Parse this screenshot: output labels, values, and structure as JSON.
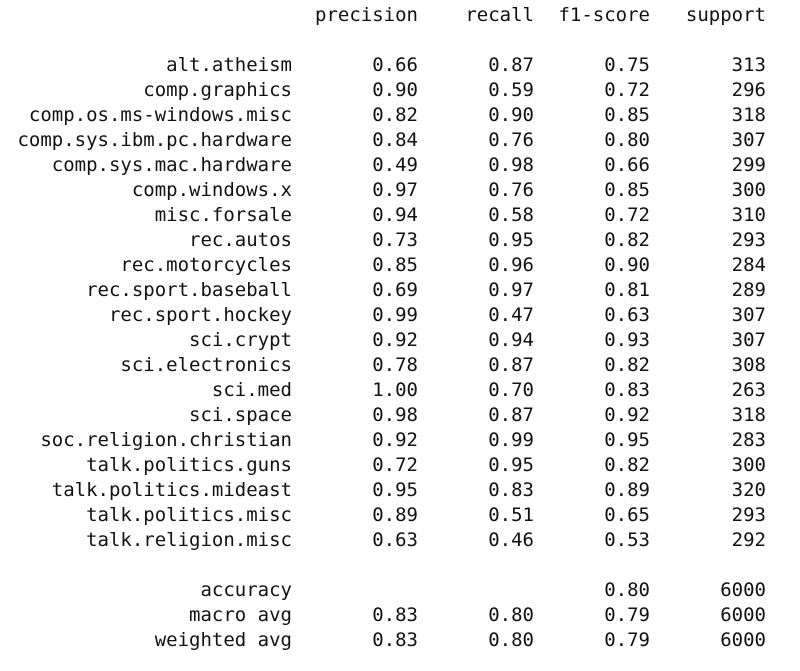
{
  "report": {
    "headers": [
      "precision",
      "recall",
      "f1-score",
      "support"
    ],
    "classes": [
      {
        "label": "alt.atheism",
        "precision": "0.66",
        "recall": "0.87",
        "f1": "0.75",
        "support": "313"
      },
      {
        "label": "comp.graphics",
        "precision": "0.90",
        "recall": "0.59",
        "f1": "0.72",
        "support": "296"
      },
      {
        "label": "comp.os.ms-windows.misc",
        "precision": "0.82",
        "recall": "0.90",
        "f1": "0.85",
        "support": "318"
      },
      {
        "label": "comp.sys.ibm.pc.hardware",
        "precision": "0.84",
        "recall": "0.76",
        "f1": "0.80",
        "support": "307"
      },
      {
        "label": "comp.sys.mac.hardware",
        "precision": "0.49",
        "recall": "0.98",
        "f1": "0.66",
        "support": "299"
      },
      {
        "label": "comp.windows.x",
        "precision": "0.97",
        "recall": "0.76",
        "f1": "0.85",
        "support": "300"
      },
      {
        "label": "misc.forsale",
        "precision": "0.94",
        "recall": "0.58",
        "f1": "0.72",
        "support": "310"
      },
      {
        "label": "rec.autos",
        "precision": "0.73",
        "recall": "0.95",
        "f1": "0.82",
        "support": "293"
      },
      {
        "label": "rec.motorcycles",
        "precision": "0.85",
        "recall": "0.96",
        "f1": "0.90",
        "support": "284"
      },
      {
        "label": "rec.sport.baseball",
        "precision": "0.69",
        "recall": "0.97",
        "f1": "0.81",
        "support": "289"
      },
      {
        "label": "rec.sport.hockey",
        "precision": "0.99",
        "recall": "0.47",
        "f1": "0.63",
        "support": "307"
      },
      {
        "label": "sci.crypt",
        "precision": "0.92",
        "recall": "0.94",
        "f1": "0.93",
        "support": "307"
      },
      {
        "label": "sci.electronics",
        "precision": "0.78",
        "recall": "0.87",
        "f1": "0.82",
        "support": "308"
      },
      {
        "label": "sci.med",
        "precision": "1.00",
        "recall": "0.70",
        "f1": "0.83",
        "support": "263"
      },
      {
        "label": "sci.space",
        "precision": "0.98",
        "recall": "0.87",
        "f1": "0.92",
        "support": "318"
      },
      {
        "label": "soc.religion.christian",
        "precision": "0.92",
        "recall": "0.99",
        "f1": "0.95",
        "support": "283"
      },
      {
        "label": "talk.politics.guns",
        "precision": "0.72",
        "recall": "0.95",
        "f1": "0.82",
        "support": "300"
      },
      {
        "label": "talk.politics.mideast",
        "precision": "0.95",
        "recall": "0.83",
        "f1": "0.89",
        "support": "320"
      },
      {
        "label": "talk.politics.misc",
        "precision": "0.89",
        "recall": "0.51",
        "f1": "0.65",
        "support": "293"
      },
      {
        "label": "talk.religion.misc",
        "precision": "0.63",
        "recall": "0.46",
        "f1": "0.53",
        "support": "292"
      }
    ],
    "summary": [
      {
        "label": "accuracy",
        "precision": "",
        "recall": "",
        "f1": "0.80",
        "support": "6000"
      },
      {
        "label": "macro avg",
        "precision": "0.83",
        "recall": "0.80",
        "f1": "0.79",
        "support": "6000"
      },
      {
        "label": "weighted avg",
        "precision": "0.83",
        "recall": "0.80",
        "f1": "0.79",
        "support": "6000"
      }
    ]
  }
}
